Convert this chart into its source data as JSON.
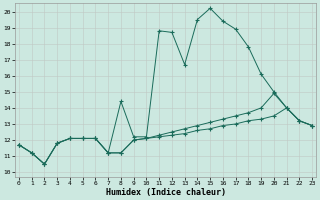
{
  "xlabel": "Humidex (Indice chaleur)",
  "background_color": "#cce8e0",
  "grid_color": "#c0c8c4",
  "line_color": "#1a6b5a",
  "x_ticks": [
    0,
    1,
    2,
    3,
    4,
    5,
    6,
    7,
    8,
    9,
    10,
    11,
    12,
    13,
    14,
    15,
    16,
    17,
    18,
    19,
    20,
    21,
    22,
    23
  ],
  "y_ticks": [
    10,
    11,
    12,
    13,
    14,
    15,
    16,
    17,
    18,
    19,
    20
  ],
  "ylim": [
    9.7,
    20.5
  ],
  "xlim": [
    -0.3,
    23.3
  ],
  "series": [
    {
      "x": [
        0,
        1,
        2,
        3,
        4,
        5,
        6,
        7,
        8,
        9,
        10,
        11,
        12,
        13,
        14,
        15,
        16,
        17,
        18,
        19,
        20,
        21,
        22,
        23
      ],
      "y": [
        11.7,
        11.2,
        10.5,
        11.8,
        12.1,
        12.1,
        12.1,
        11.2,
        14.4,
        12.2,
        12.2,
        18.8,
        18.7,
        16.7,
        19.5,
        20.2,
        19.4,
        18.9,
        17.8,
        16.1,
        15.0,
        14.0,
        13.2,
        12.9
      ]
    },
    {
      "x": [
        0,
        1,
        2,
        3,
        4,
        5,
        6,
        7,
        8,
        9,
        10,
        11,
        12,
        13,
        14,
        15,
        16,
        17,
        18,
        19,
        20,
        21,
        22,
        23
      ],
      "y": [
        11.7,
        11.2,
        10.5,
        11.8,
        12.1,
        12.1,
        12.1,
        11.2,
        11.2,
        12.0,
        12.1,
        12.3,
        12.5,
        12.7,
        12.9,
        13.1,
        13.3,
        13.5,
        13.7,
        14.0,
        14.9,
        14.0,
        13.2,
        12.9
      ]
    },
    {
      "x": [
        0,
        1,
        2,
        3,
        4,
        5,
        6,
        7,
        8,
        9,
        10,
        11,
        12,
        13,
        14,
        15,
        16,
        17,
        18,
        19,
        20,
        21,
        22,
        23
      ],
      "y": [
        11.7,
        11.2,
        10.5,
        11.8,
        12.1,
        12.1,
        12.1,
        11.2,
        11.2,
        12.0,
        12.1,
        12.2,
        12.3,
        12.4,
        12.6,
        12.7,
        12.9,
        13.0,
        13.2,
        13.3,
        13.5,
        14.0,
        13.2,
        12.9
      ]
    }
  ]
}
